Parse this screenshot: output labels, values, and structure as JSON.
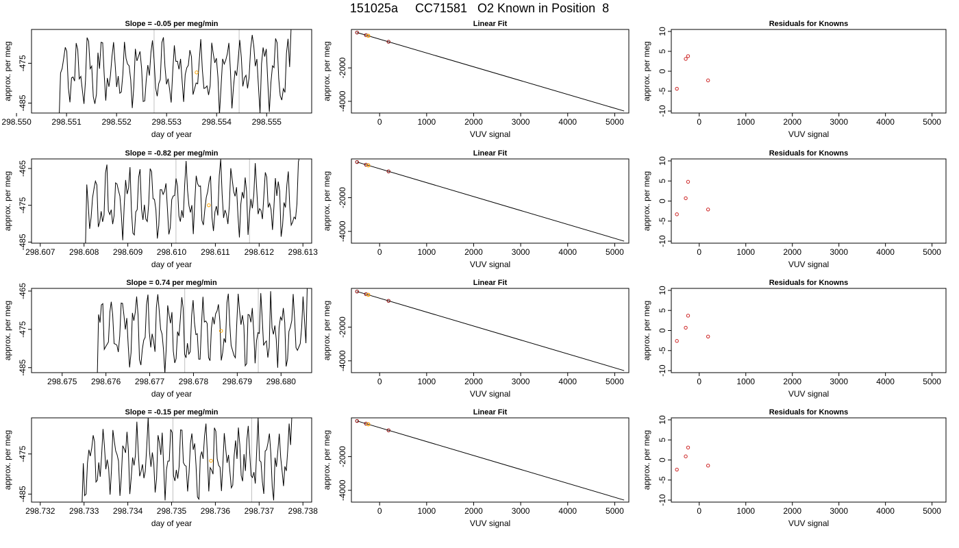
{
  "page": {
    "title": "151025a     CC71581   O2 Known in Position  8"
  },
  "colors": {
    "background": "#ffffff",
    "frame": "#000000",
    "trace": "#000000",
    "vertical_marker": "#c0c0c0",
    "known_point_orange": "#ffa500",
    "fit_point_dark": "#8b0000",
    "residual_point": "#cc2222"
  },
  "chart_data": [
    {
      "type": "line",
      "row": 1,
      "col": 1,
      "title": "Slope =  -0.05  per meg/min",
      "xlabel": "day of year",
      "ylabel": "approx. per meg",
      "xlim": [
        298.5503,
        298.5559
      ],
      "ylim": [
        -487.5,
        -466.5
      ],
      "xticks": [
        298.55,
        298.551,
        298.552,
        298.553,
        298.554,
        298.555
      ],
      "xtick_labels": [
        "298.550",
        "298.551",
        "298.552",
        "298.553",
        "298.554",
        "298.555"
      ],
      "yticks": [
        -475,
        -485
      ],
      "ytick_labels": [
        "-475",
        "-485"
      ],
      "x_start": 298.55085,
      "x_end": 298.55549,
      "markers_x": [
        298.55275,
        298.55445
      ],
      "highlight_point": {
        "x": 298.5536,
        "y": -477.3
      },
      "seed": 11
    },
    {
      "type": "line",
      "row": 1,
      "col": 2,
      "title": "Linear Fit",
      "xlabel": "VUV signal",
      "ylabel": "approx. per meg",
      "xlim": [
        -600,
        5300
      ],
      "ylim": [
        -4700,
        300
      ],
      "xticks": [
        0,
        1000,
        2000,
        3000,
        4000,
        5000
      ],
      "xtick_labels": [
        "0",
        "1000",
        "2000",
        "3000",
        "4000",
        "5000"
      ],
      "yticks": [
        -2000,
        -4000
      ],
      "ytick_labels": [
        "-2000",
        "-4000"
      ],
      "fit_line": {
        "x": [
          -480,
          5200
        ],
        "y": [
          115,
          -4580
        ]
      },
      "points": {
        "x": [
          -480,
          -290,
          -240,
          190
        ],
        "y": [
          115,
          -42,
          -82,
          -438
        ]
      },
      "known_point": {
        "x": -240,
        "y": -82
      }
    },
    {
      "type": "scatter",
      "row": 1,
      "col": 3,
      "title": "Residuals for Knowns",
      "xlabel": "VUV signal",
      "ylabel": "approx. per meg",
      "xlim": [
        -600,
        5300
      ],
      "ylim": [
        -10.5,
        10.5
      ],
      "xticks": [
        0,
        1000,
        2000,
        3000,
        4000,
        5000
      ],
      "xtick_labels": [
        "0",
        "1000",
        "2000",
        "3000",
        "4000",
        "5000"
      ],
      "yticks": [
        10,
        5,
        0,
        -5,
        -10
      ],
      "ytick_labels": [
        "10",
        "5",
        "0",
        "-5",
        "-10"
      ],
      "x": [
        -480,
        -290,
        -240,
        190
      ],
      "y": [
        -4.4,
        3.1,
        3.8,
        -2.3
      ]
    },
    {
      "type": "line",
      "row": 2,
      "col": 1,
      "title": "Slope =  -0.82  per meg/min",
      "xlabel": "day of year",
      "ylabel": "approx. per meg",
      "xlim": [
        298.6068,
        298.6132
      ],
      "ylim": [
        -485.3,
        -462.4
      ],
      "xticks": [
        298.607,
        298.608,
        298.609,
        298.61,
        298.611,
        298.612,
        298.613
      ],
      "xtick_labels": [
        "298.607",
        "298.608",
        "298.609",
        "298.610",
        "298.611",
        "298.612",
        "298.613"
      ],
      "yticks": [
        -465,
        -475,
        -485
      ],
      "ytick_labels": [
        "-465",
        "-475",
        "-485"
      ],
      "x_start": 298.60803,
      "x_end": 298.61293,
      "markers_x": [
        298.6101,
        298.61178
      ],
      "highlight_point": {
        "x": 298.61085,
        "y": -475.0
      },
      "seed": 23
    },
    {
      "type": "line",
      "row": 2,
      "col": 2,
      "title": "Linear Fit",
      "xlabel": "VUV signal",
      "ylabel": "approx. per meg",
      "xlim": [
        -600,
        5300
      ],
      "ylim": [
        -4700,
        300
      ],
      "xticks": [
        0,
        1000,
        2000,
        3000,
        4000,
        5000
      ],
      "xtick_labels": [
        "0",
        "1000",
        "2000",
        "3000",
        "4000",
        "5000"
      ],
      "yticks": [
        -2000,
        -4000
      ],
      "ytick_labels": [
        "-2000",
        "-4000"
      ],
      "fit_line": {
        "x": [
          -480,
          5200
        ],
        "y": [
          115,
          -4580
        ]
      },
      "points": {
        "x": [
          -480,
          -290,
          -240,
          190
        ],
        "y": [
          115,
          -42,
          -82,
          -438
        ]
      },
      "known_point": {
        "x": -240,
        "y": -82
      }
    },
    {
      "type": "scatter",
      "row": 2,
      "col": 3,
      "title": "Residuals for Knowns",
      "xlabel": "VUV signal",
      "ylabel": "approx. per meg",
      "xlim": [
        -600,
        5300
      ],
      "ylim": [
        -10.5,
        10.5
      ],
      "xticks": [
        0,
        1000,
        2000,
        3000,
        4000,
        5000
      ],
      "xtick_labels": [
        "0",
        "1000",
        "2000",
        "3000",
        "4000",
        "5000"
      ],
      "yticks": [
        10,
        5,
        0,
        -5,
        -10
      ],
      "ytick_labels": [
        "10",
        "5",
        "0",
        "-5",
        "-10"
      ],
      "x": [
        -480,
        -290,
        -240,
        190
      ],
      "y": [
        -3.3,
        0.7,
        4.8,
        -2.1
      ]
    },
    {
      "type": "line",
      "row": 3,
      "col": 1,
      "title": "Slope =  0.74  per meg/min",
      "xlabel": "day of year",
      "ylabel": "approx. per meg",
      "xlim": [
        298.6743,
        298.6807
      ],
      "ylim": [
        -486.3,
        -464.3
      ],
      "xticks": [
        298.675,
        298.676,
        298.677,
        298.678,
        298.679,
        298.68
      ],
      "xtick_labels": [
        "298.675",
        "298.676",
        "298.677",
        "298.678",
        "298.679",
        "298.680"
      ],
      "yticks": [
        -465,
        -475,
        -485
      ],
      "ytick_labels": [
        "-465",
        "-475",
        "-485"
      ],
      "x_start": 298.6758,
      "x_end": 298.6806,
      "markers_x": [
        298.6778,
        298.67948
      ],
      "highlight_point": {
        "x": 298.67863,
        "y": -475.4
      },
      "seed": 37
    },
    {
      "type": "line",
      "row": 3,
      "col": 2,
      "title": "Linear Fit",
      "xlabel": "VUV signal",
      "ylabel": "approx. per meg",
      "xlim": [
        -600,
        5300
      ],
      "ylim": [
        -4700,
        300
      ],
      "xticks": [
        0,
        1000,
        2000,
        3000,
        4000,
        5000
      ],
      "xtick_labels": [
        "0",
        "1000",
        "2000",
        "3000",
        "4000",
        "5000"
      ],
      "yticks": [
        -2000,
        -4000
      ],
      "ytick_labels": [
        "-2000",
        "-4000"
      ],
      "fit_line": {
        "x": [
          -480,
          5200
        ],
        "y": [
          115,
          -4580
        ]
      },
      "points": {
        "x": [
          -480,
          -290,
          -240,
          190
        ],
        "y": [
          115,
          -42,
          -82,
          -438
        ]
      },
      "known_point": {
        "x": -240,
        "y": -82
      }
    },
    {
      "type": "scatter",
      "row": 3,
      "col": 3,
      "title": "Residuals for Knowns",
      "xlabel": "VUV signal",
      "ylabel": "approx. per meg",
      "xlim": [
        -600,
        5300
      ],
      "ylim": [
        -10.5,
        10.5
      ],
      "xticks": [
        0,
        1000,
        2000,
        3000,
        4000,
        5000
      ],
      "xtick_labels": [
        "0",
        "1000",
        "2000",
        "3000",
        "4000",
        "5000"
      ],
      "yticks": [
        10,
        5,
        0,
        -5,
        -10
      ],
      "ytick_labels": [
        "10",
        "5",
        "0",
        "-5",
        "-10"
      ],
      "x": [
        -480,
        -290,
        -240,
        190
      ],
      "y": [
        -2.6,
        0.7,
        3.7,
        -1.5
      ]
    },
    {
      "type": "line",
      "row": 4,
      "col": 1,
      "title": "Slope =  -0.15  per meg/min",
      "xlabel": "day of year",
      "ylabel": "approx. per meg",
      "xlim": [
        298.7318,
        298.7382
      ],
      "ylim": [
        -487.0,
        -466.0
      ],
      "xticks": [
        298.732,
        298.733,
        298.734,
        298.735,
        298.736,
        298.737,
        298.738
      ],
      "xtick_labels": [
        "298.732",
        "298.733",
        "298.734",
        "298.735",
        "298.736",
        "298.737",
        "298.738"
      ],
      "yticks": [
        -475,
        -485
      ],
      "ytick_labels": [
        "-475",
        "-485"
      ],
      "x_start": 298.73295,
      "x_end": 298.73775,
      "markers_x": [
        298.73503,
        298.73683
      ],
      "highlight_point": {
        "x": 298.7359,
        "y": -476.7
      },
      "seed": 53
    },
    {
      "type": "line",
      "row": 4,
      "col": 2,
      "title": "Linear Fit",
      "xlabel": "VUV signal",
      "ylabel": "approx. per meg",
      "xlim": [
        -600,
        5300
      ],
      "ylim": [
        -4700,
        300
      ],
      "xticks": [
        0,
        1000,
        2000,
        3000,
        4000,
        5000
      ],
      "xtick_labels": [
        "0",
        "1000",
        "2000",
        "3000",
        "4000",
        "5000"
      ],
      "yticks": [
        -2000,
        -4000
      ],
      "ytick_labels": [
        "-2000",
        "-4000"
      ],
      "fit_line": {
        "x": [
          -480,
          5200
        ],
        "y": [
          115,
          -4580
        ]
      },
      "points": {
        "x": [
          -480,
          -290,
          -240,
          190
        ],
        "y": [
          115,
          -42,
          -82,
          -438
        ]
      },
      "known_point": {
        "x": -240,
        "y": -82
      }
    },
    {
      "type": "scatter",
      "row": 4,
      "col": 3,
      "title": "Residuals for Knowns",
      "xlabel": "VUV signal",
      "ylabel": "approx. per meg",
      "xlim": [
        -600,
        5300
      ],
      "ylim": [
        -10.5,
        10.5
      ],
      "xticks": [
        0,
        1000,
        2000,
        3000,
        4000,
        5000
      ],
      "xtick_labels": [
        "0",
        "1000",
        "2000",
        "3000",
        "4000",
        "5000"
      ],
      "yticks": [
        10,
        5,
        0,
        -5,
        -10
      ],
      "ytick_labels": [
        "10",
        "5",
        "0",
        "-5",
        "-10"
      ],
      "x": [
        -480,
        -290,
        -240,
        190
      ],
      "y": [
        -2.4,
        0.9,
        3.1,
        -1.4
      ]
    }
  ]
}
